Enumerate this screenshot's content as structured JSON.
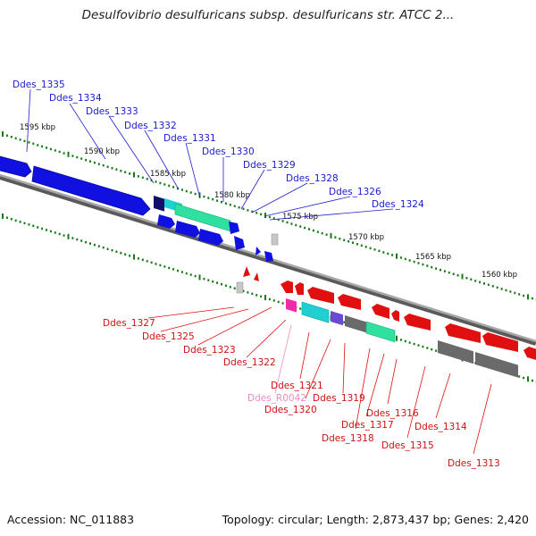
{
  "title": "Desulfovibrio desulfuricans subsp. desulfuricans str. ATCC 2...",
  "footer": {
    "accession": "Accession: NC_011883",
    "summary": "Topology: circular; Length: 2,873,437 bp; Genes: 2,420"
  },
  "colors": {
    "forward_gene": "#1010e0",
    "reverse_gene": "#e01010",
    "backbone": "#888888",
    "tick": "#1a7a1a",
    "pseudo": "#7a7a7a",
    "teal": "#20d0d0",
    "mint": "#30e0a0",
    "navy": "#10106a",
    "magenta": "#f02ca8",
    "purple": "#6a4ad0",
    "pink_label": "#f08ac8"
  },
  "scale_labels": [
    "1595 kbp",
    "1590 kbp",
    "1585 kbp",
    "1580 kbp",
    "1575 kbp",
    "1570 kbp",
    "1565 kbp",
    "1560 kbp"
  ],
  "forward_labels": [
    "Ddes_1335",
    "Ddes_1334",
    "Ddes_1333",
    "Ddes_1332",
    "Ddes_1331",
    "Ddes_1330",
    "Ddes_1329",
    "Ddes_1328",
    "Ddes_1326",
    "Ddes_1324"
  ],
  "reverse_labels": [
    "Ddes_1327",
    "Ddes_1325",
    "Ddes_1323",
    "Ddes_1322",
    "Ddes_1321",
    "Ddes_R0042",
    "Ddes_1320",
    "Ddes_1319",
    "Ddes_1318",
    "Ddes_1317",
    "Ddes_1316",
    "Ddes_1315",
    "Ddes_1314",
    "Ddes_1313"
  ]
}
